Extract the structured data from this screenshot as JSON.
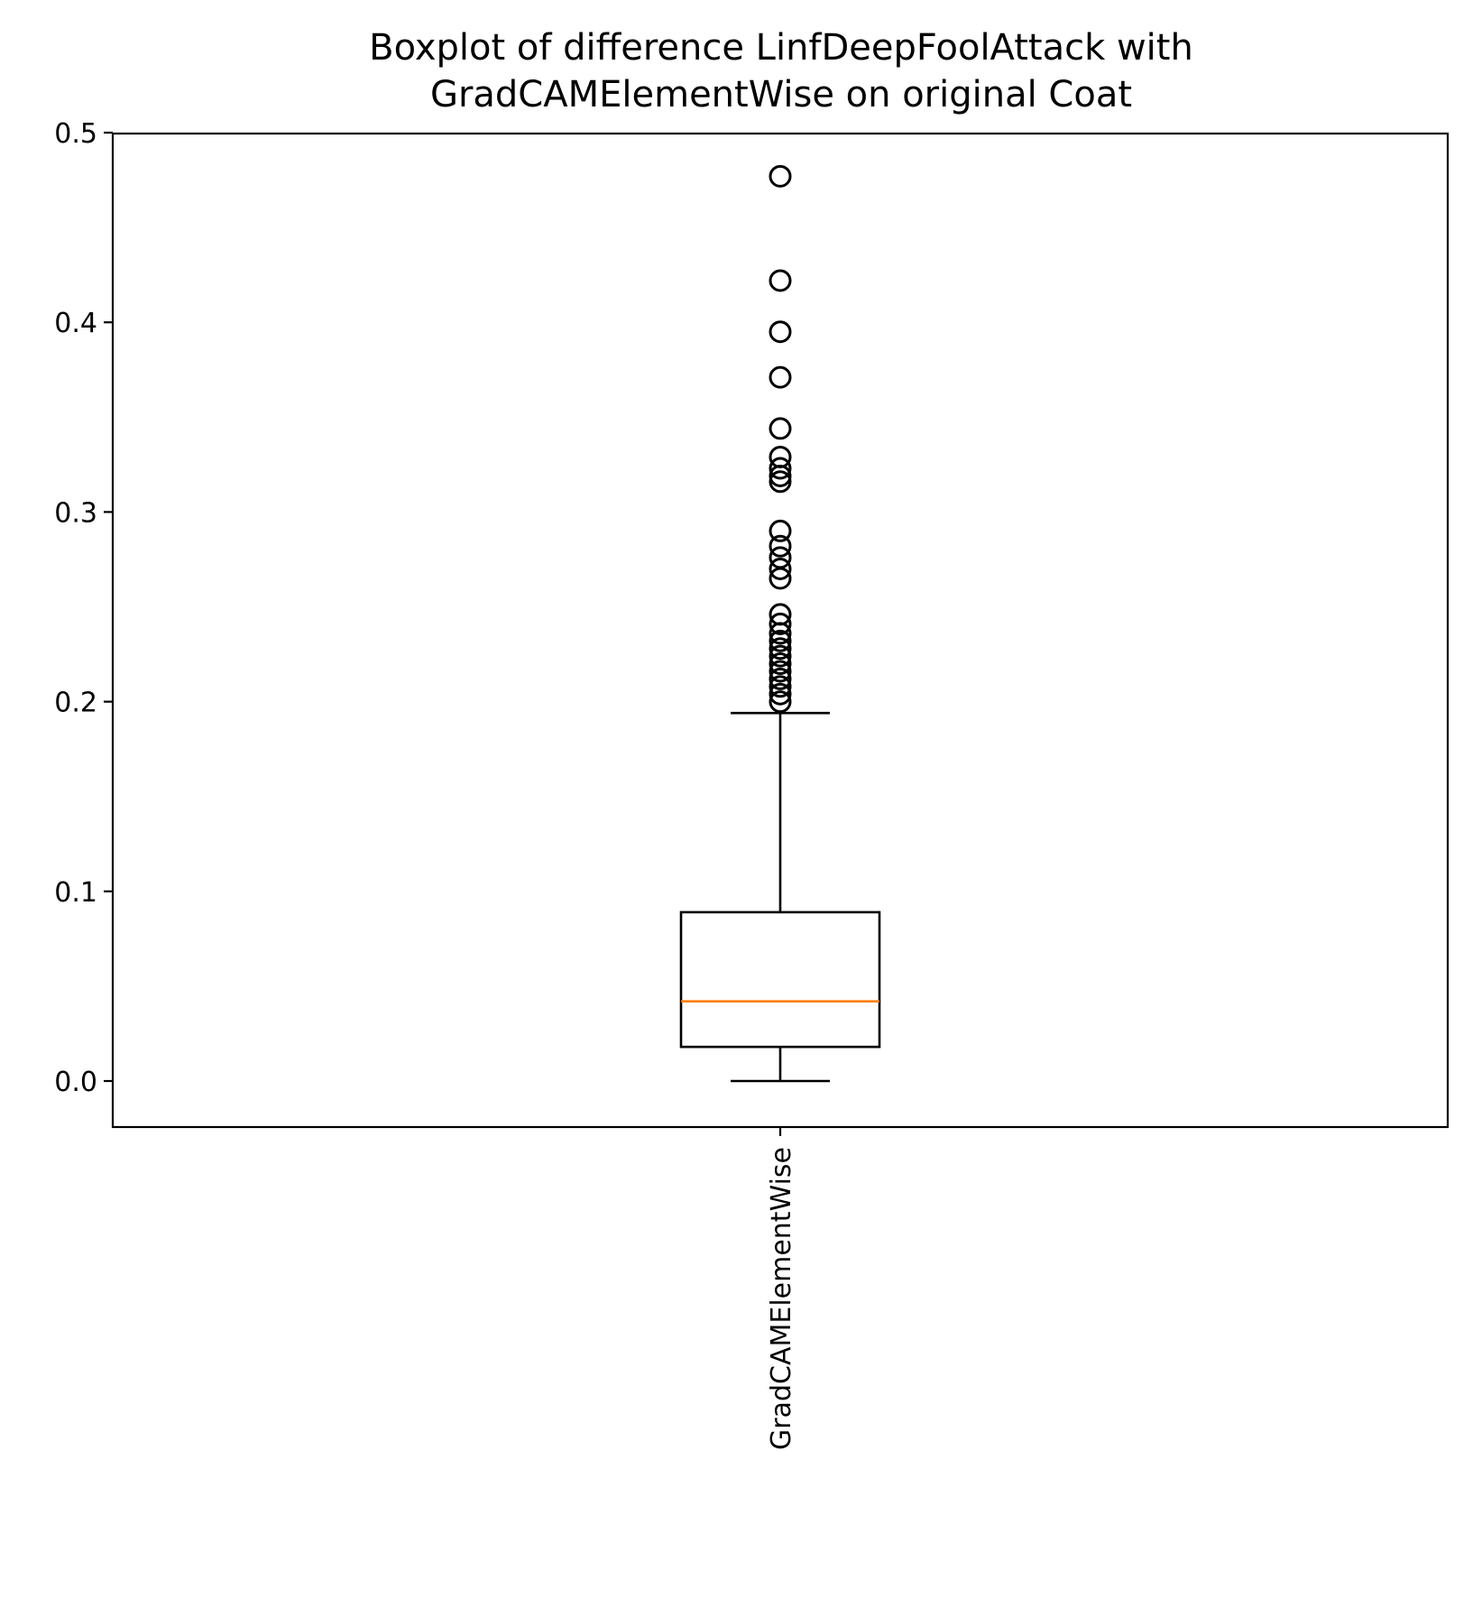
{
  "chart_data": {
    "type": "box",
    "title_lines": [
      "Boxplot of difference LinfDeepFoolAttack with",
      "GradCAMElementWise on original Coat"
    ],
    "xlabel": "",
    "ylabel": "",
    "ylim": [
      -0.024,
      0.5
    ],
    "yticks": [
      {
        "value": 0.0,
        "label": "0.0"
      },
      {
        "value": 0.1,
        "label": "0.1"
      },
      {
        "value": 0.2,
        "label": "0.2"
      },
      {
        "value": 0.3,
        "label": "0.3"
      },
      {
        "value": 0.4,
        "label": "0.4"
      },
      {
        "value": 0.5,
        "label": "0.5"
      }
    ],
    "grid": false,
    "legend": "none",
    "categories": [
      "GradCAMElementWise"
    ],
    "boxes": [
      {
        "name": "GradCAMElementWise",
        "whisker_low": 0.0,
        "q1": 0.018,
        "median": 0.042,
        "q3": 0.089,
        "whisker_high": 0.194,
        "outliers": [
          0.477,
          0.422,
          0.395,
          0.371,
          0.344,
          0.329,
          0.323,
          0.319,
          0.316,
          0.29,
          0.282,
          0.276,
          0.27,
          0.265,
          0.246,
          0.241,
          0.236,
          0.232,
          0.228,
          0.224,
          0.22,
          0.216,
          0.212,
          0.208,
          0.204,
          0.2
        ]
      }
    ],
    "colors": {
      "box": "#000000",
      "median": "#ff7f0e",
      "outlier": "#000000"
    }
  }
}
